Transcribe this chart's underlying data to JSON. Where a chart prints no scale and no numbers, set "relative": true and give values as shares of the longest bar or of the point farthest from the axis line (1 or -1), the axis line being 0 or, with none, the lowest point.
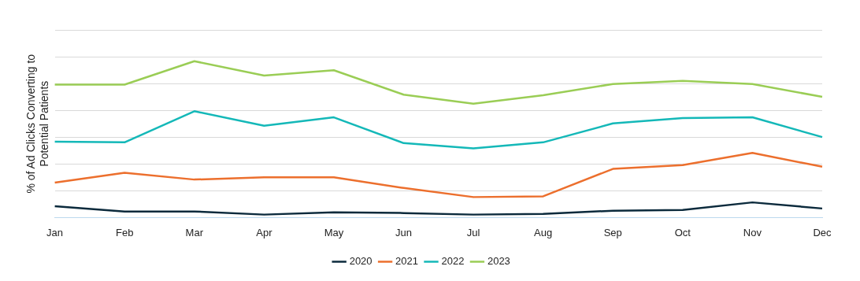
{
  "chart_data": {
    "type": "line",
    "relative": true,
    "ylabel": "% of Ad Clicks Converting to Potential Patients",
    "categories": [
      "Jan",
      "Feb",
      "Mar",
      "Apr",
      "May",
      "Jun",
      "Jul",
      "Aug",
      "Sep",
      "Oct",
      "Nov",
      "Dec"
    ],
    "series": [
      {
        "name": "2020",
        "color": "#0b2a3c",
        "values": [
          0.073,
          0.039,
          0.039,
          0.019,
          0.034,
          0.029,
          0.019,
          0.024,
          0.044,
          0.049,
          0.097,
          0.058
        ]
      },
      {
        "name": "2021",
        "color": "#ec6f2d",
        "values": [
          0.223,
          0.286,
          0.243,
          0.257,
          0.257,
          0.189,
          0.131,
          0.136,
          0.311,
          0.335,
          0.413,
          0.325
        ]
      },
      {
        "name": "2022",
        "color": "#14b8b8",
        "values": [
          0.485,
          0.481,
          0.68,
          0.587,
          0.641,
          0.476,
          0.442,
          0.481,
          0.602,
          0.636,
          0.641,
          0.515
        ]
      },
      {
        "name": "2023",
        "color": "#9acd55",
        "values": [
          0.85,
          0.85,
          1,
          0.908,
          0.942,
          0.786,
          0.728,
          0.782,
          0.854,
          0.874,
          0.854,
          0.772
        ]
      }
    ],
    "grid": "y",
    "legend": "bottom",
    "marker": "none",
    "line_style": "solid"
  }
}
